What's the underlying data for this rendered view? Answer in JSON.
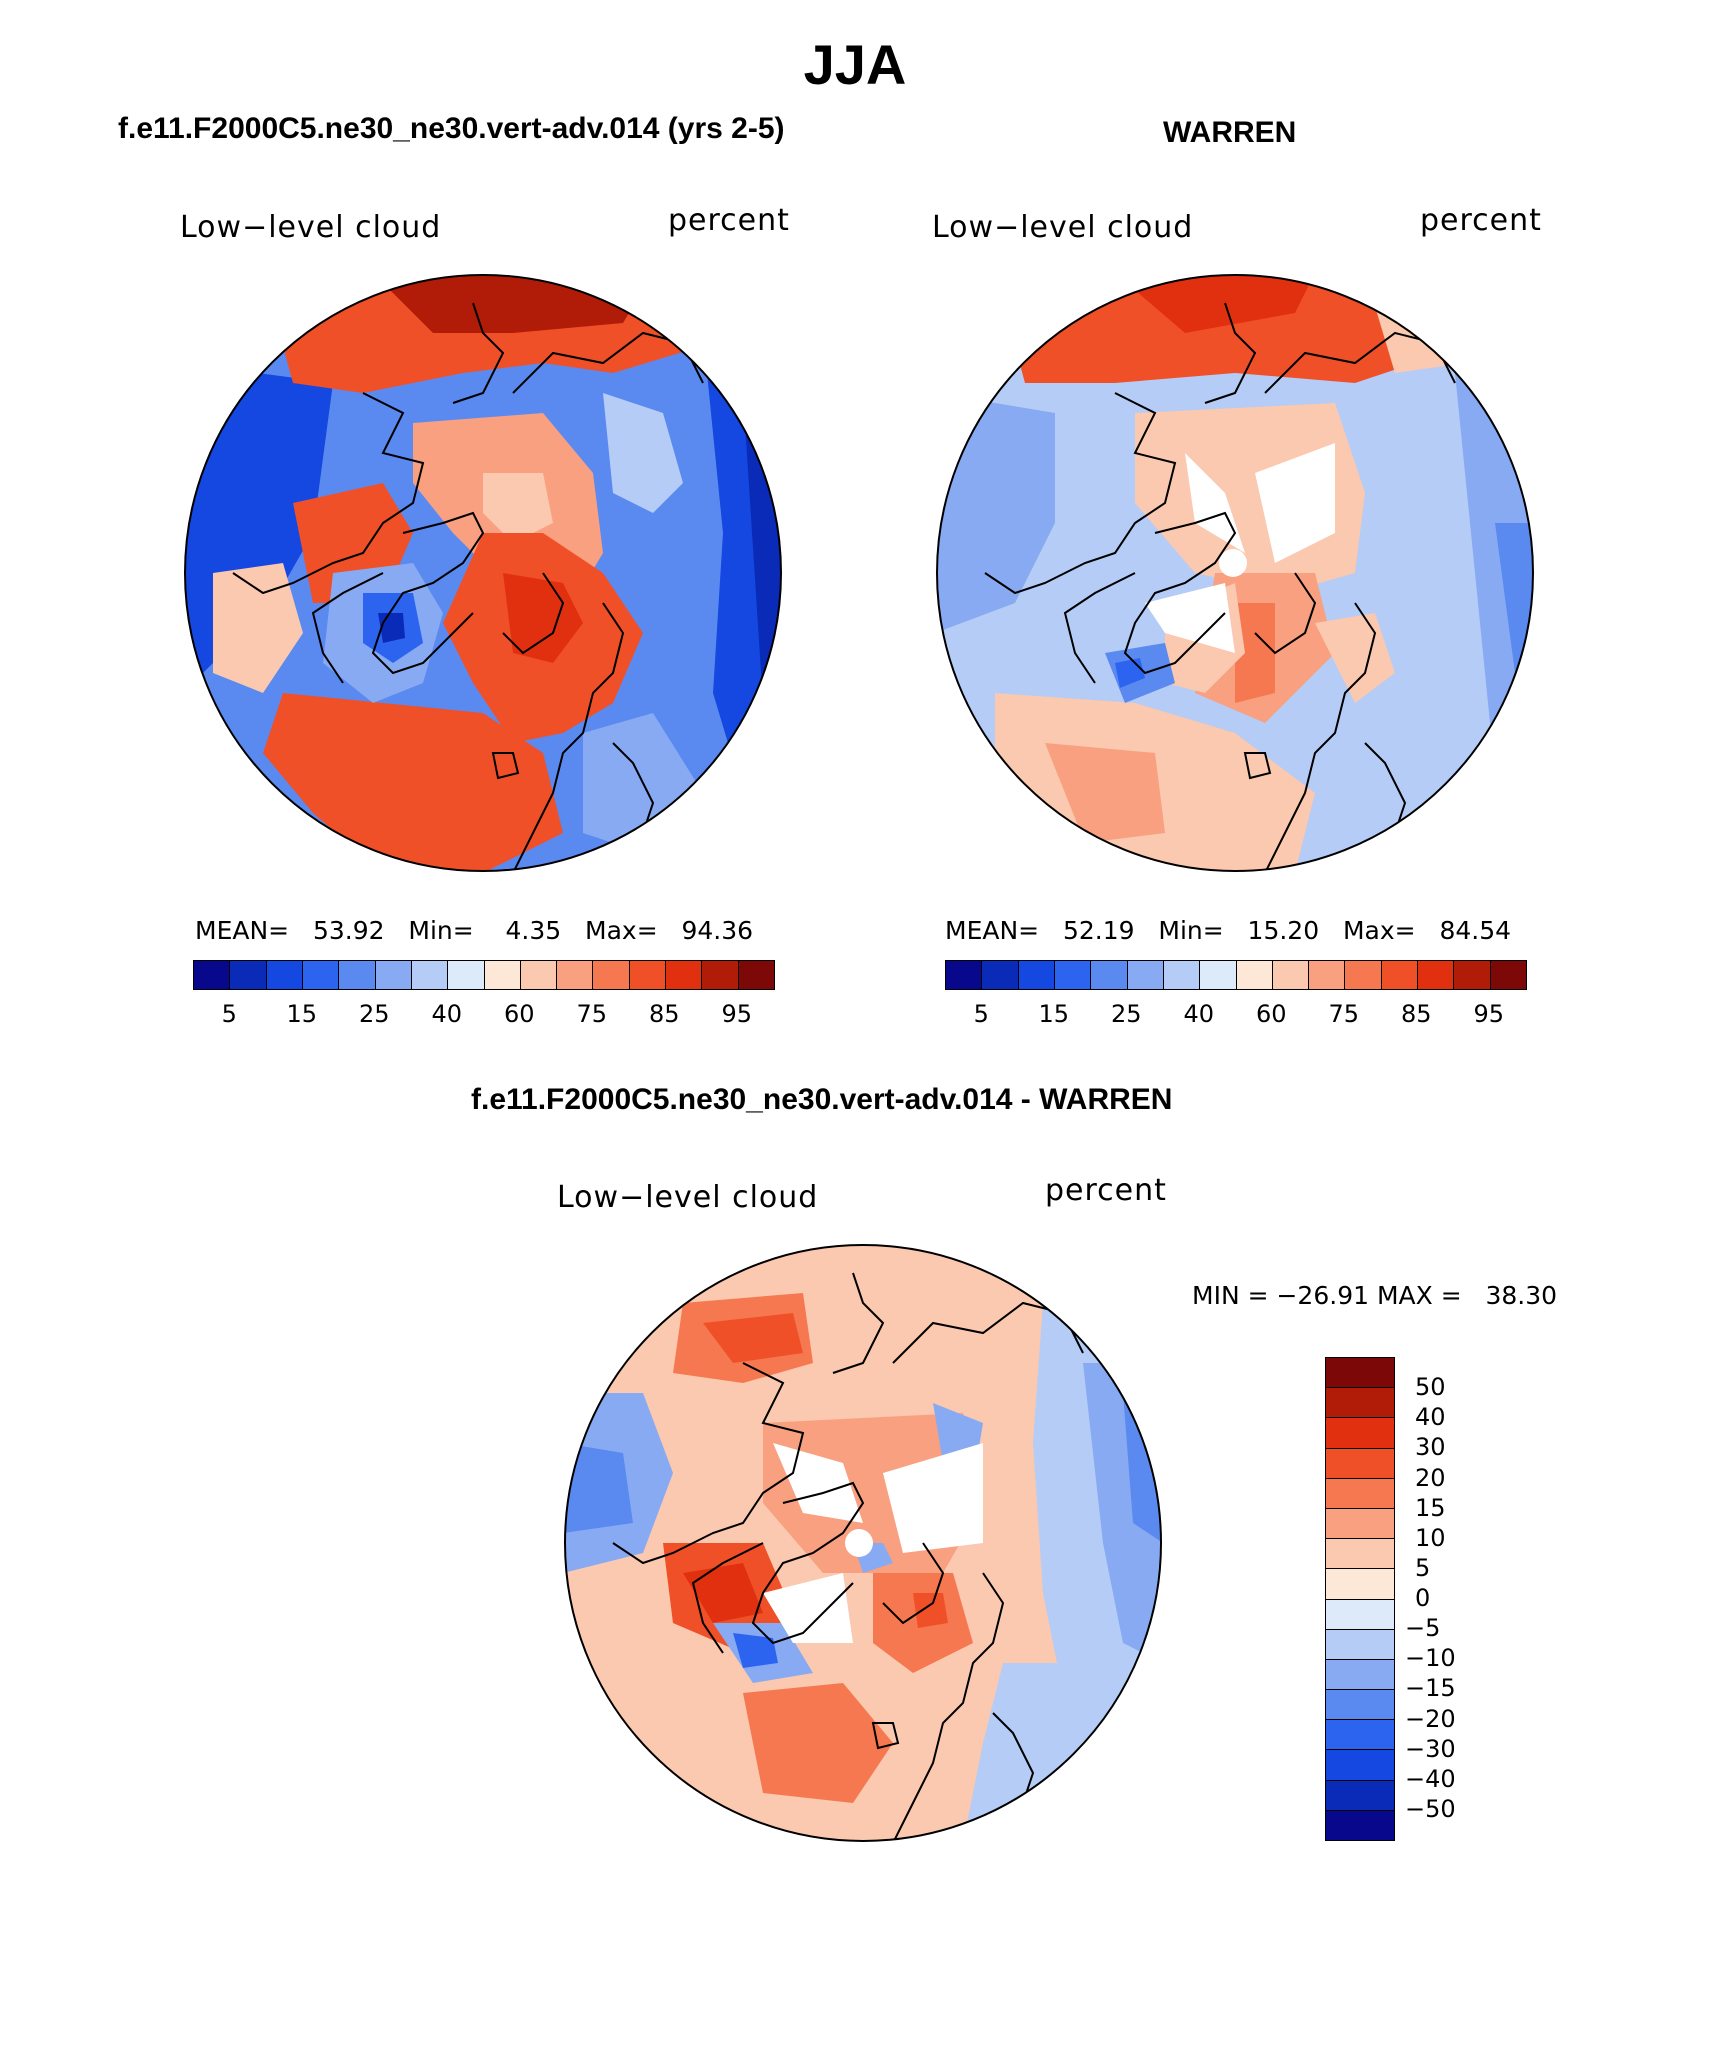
{
  "title": "JJA",
  "panels": [
    {
      "id": "model",
      "subtitle": "f.e11.F2000C5.ne30_ne30.vert-adv.014 (yrs 2-5)",
      "left_label": "Low−level cloud",
      "right_label": "percent",
      "stats": {
        "mean_label": "MEAN=",
        "mean": "53.92",
        "min_label": "Min=",
        "min": "4.35",
        "max_label": "Max=",
        "max": "94.36"
      }
    },
    {
      "id": "obs",
      "subtitle": "WARREN",
      "left_label": "Low−level cloud",
      "right_label": "percent",
      "stats": {
        "mean_label": "MEAN=",
        "mean": "52.19",
        "min_label": "Min=",
        "min": "15.20",
        "max_label": "Max=",
        "max": "84.54"
      }
    },
    {
      "id": "diff",
      "subtitle": "f.e11.F2000C5.ne30_ne30.vert-adv.014 - WARREN",
      "left_label": "Low−level cloud",
      "right_label": "percent",
      "minmax_text": "MIN = −26.91 MAX =   38.30"
    }
  ],
  "abs_colorbar": {
    "tick_labels": [
      "5",
      "15",
      "25",
      "40",
      "60",
      "75",
      "85",
      "95"
    ],
    "colors": [
      "#08088c",
      "#0a2bb8",
      "#1448e0",
      "#2c64f0",
      "#5a8af0",
      "#88aaf2",
      "#b4ccf6",
      "#dceafa",
      "#fde8d8",
      "#fbc8b0",
      "#f8a080",
      "#f57850",
      "#f05028",
      "#e03010",
      "#b01c08",
      "#7c0808"
    ]
  },
  "diff_colorbar": {
    "tick_labels": [
      "50",
      "40",
      "30",
      "20",
      "15",
      "10",
      "5",
      "0",
      "−5",
      "−10",
      "−15",
      "−20",
      "−30",
      "−40",
      "−50"
    ],
    "colors": [
      "#7c0808",
      "#b01c08",
      "#e03010",
      "#f05028",
      "#f57850",
      "#f8a080",
      "#fbc8b0",
      "#fde8d8",
      "#dceafa",
      "#b4ccf6",
      "#88aaf2",
      "#5a8af0",
      "#2c64f0",
      "#1448e0",
      "#0a2bb8",
      "#08088c"
    ]
  },
  "legend_icons": [
    "polar-map-icon"
  ]
}
